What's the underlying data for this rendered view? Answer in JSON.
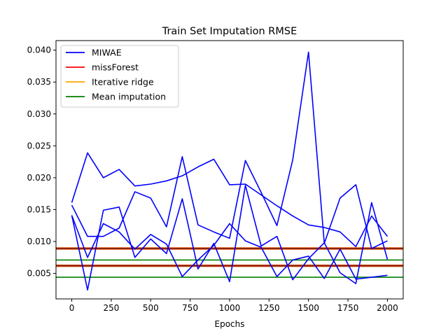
{
  "chart_data": {
    "type": "line",
    "title": "Train Set Imputation RMSE",
    "xlabel": "Epochs",
    "ylabel": "",
    "xlim": [
      -100,
      2100
    ],
    "ylim": [
      0.001,
      0.0415
    ],
    "xticks": [
      0,
      250,
      500,
      750,
      1000,
      1250,
      1500,
      1750,
      2000
    ],
    "yticks": [
      0.005,
      0.01,
      0.015,
      0.02,
      0.025,
      0.03,
      0.035,
      0.04
    ],
    "xtick_labels": [
      "0",
      "250",
      "500",
      "750",
      "1000",
      "1250",
      "1500",
      "1750",
      "2000"
    ],
    "ytick_labels": [
      "0.005",
      "0.010",
      "0.015",
      "0.020",
      "0.025",
      "0.030",
      "0.035",
      "0.040"
    ],
    "legend_position": "upper left",
    "grid": false,
    "series": [
      {
        "name": "MIWAE",
        "color": "#0000ff",
        "x": [
          0,
          100,
          200,
          300,
          400,
          500,
          600,
          700,
          800,
          900,
          1000,
          1100,
          1200,
          1300,
          1400,
          1500,
          1600,
          1700,
          1800,
          1900,
          2000
        ],
        "y": [
          0.0161,
          0.0239,
          0.02,
          0.0213,
          0.0187,
          0.019,
          0.0195,
          0.0203,
          0.0217,
          0.0229,
          0.0189,
          0.019,
          0.0173,
          0.0156,
          0.014,
          0.0126,
          0.0122,
          0.0115,
          0.0092,
          0.014,
          0.0108
        ]
      },
      {
        "name": "",
        "color": "#0000ff",
        "x": [
          0,
          100,
          200,
          300,
          400,
          500,
          600,
          700,
          800,
          900,
          1000,
          1100,
          1200,
          1300,
          1400,
          1500,
          1600,
          1700,
          1800,
          1900,
          2000
        ],
        "y": [
          0.0157,
          0.0108,
          0.0108,
          0.0121,
          0.0178,
          0.0168,
          0.0123,
          0.0233,
          0.0126,
          0.0115,
          0.0105,
          0.0227,
          0.0177,
          0.0125,
          0.0228,
          0.0397,
          0.0097,
          0.0168,
          0.0189,
          0.0089,
          0.0101
        ]
      },
      {
        "name": "",
        "color": "#0000ff",
        "x": [
          0,
          100,
          200,
          300,
          400,
          500,
          600,
          700,
          800,
          900,
          1000,
          1100,
          1200,
          1300,
          1400,
          1500,
          1600,
          1700,
          1800,
          1900,
          2000
        ],
        "y": [
          0.0141,
          0.0024,
          0.0149,
          0.0154,
          0.0075,
          0.0104,
          0.0081,
          0.0167,
          0.0057,
          0.0097,
          0.0037,
          0.0188,
          0.0093,
          0.0108,
          0.004,
          0.0073,
          0.0098,
          0.0051,
          0.0034,
          0.0161,
          0.0072
        ]
      },
      {
        "name": "",
        "color": "#0000ff",
        "x": [
          0,
          100,
          200,
          300,
          400,
          500,
          600,
          700,
          800,
          900,
          1000,
          1100,
          1200,
          1300,
          1400,
          1500,
          1600,
          1700,
          1800,
          1900,
          2000
        ],
        "y": [
          0.0141,
          0.0075,
          0.0128,
          0.0115,
          0.0088,
          0.0111,
          0.0096,
          0.0045,
          0.0071,
          0.0094,
          0.0128,
          0.0101,
          0.0091,
          0.0045,
          0.0071,
          0.0077,
          0.0042,
          0.0088,
          0.0041,
          0.0044,
          0.0047
        ]
      }
    ],
    "hlines": [
      {
        "name": "missForest",
        "color": "#ff0000",
        "y": 0.0089
      },
      {
        "name": "Iterative ridge",
        "color": "#ffa500",
        "y": 0.0089
      },
      {
        "name": "Mean imputation",
        "color": "#008000",
        "y": 0.0071
      },
      {
        "name": "",
        "color": "#ff0000",
        "y": 0.0062
      },
      {
        "name": "",
        "color": "#ffa500",
        "y": 0.0062
      },
      {
        "name": "",
        "color": "#008000",
        "y": 0.0044
      }
    ],
    "legend": [
      {
        "label": "MIWAE",
        "color": "#0000ff"
      },
      {
        "label": "missForest",
        "color": "#ff0000"
      },
      {
        "label": "Iterative ridge",
        "color": "#ffa500"
      },
      {
        "label": "Mean imputation",
        "color": "#008000"
      }
    ]
  }
}
